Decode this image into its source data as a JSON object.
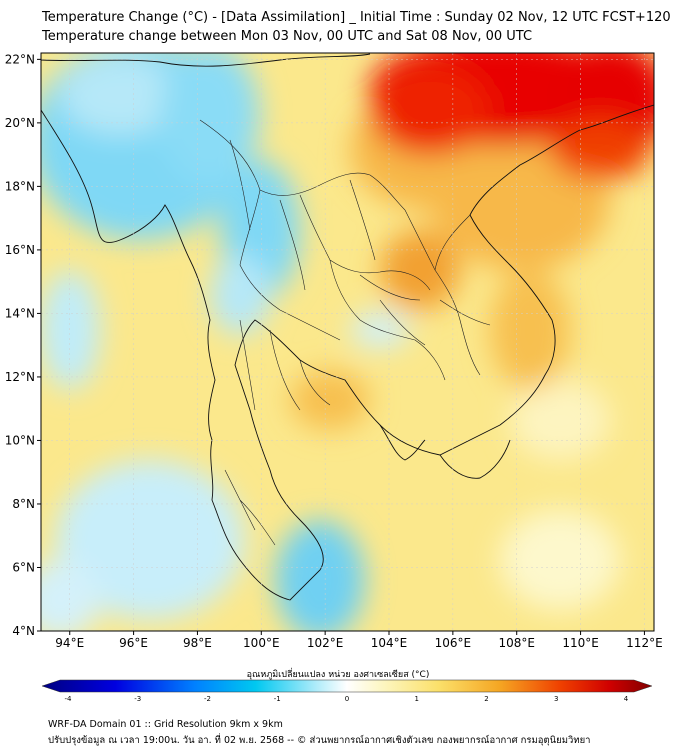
{
  "header": {
    "title_line1": "Temperature Change (°C) - [Data Assimilation] _ Initial Time : Sunday 02 Nov, 12 UTC FCST+120",
    "title_line2": "Temperature change between Mon 03 Nov, 00 UTC and Sat 08 Nov, 00 UTC"
  },
  "map": {
    "lat_labels": [
      "22°N",
      "20°N",
      "18°N",
      "16°N",
      "14°N",
      "12°N",
      "10°N",
      "8°N",
      "6°N",
      "4°N"
    ],
    "lon_labels": [
      "94°E",
      "96°E",
      "98°E",
      "100°E",
      "102°E",
      "104°E",
      "106°E",
      "108°E",
      "110°E",
      "112°E"
    ],
    "lat_range": [
      4,
      22.2
    ],
    "lon_range": [
      93.1,
      112.3
    ]
  },
  "colorbar": {
    "title": "อุณหภูมิเปลี่ยนแปลง หน่วย องศาเซลเซียส (°C)",
    "tick_labels": [
      "-4",
      "-3",
      "-2",
      "-1",
      "0",
      "1",
      "2",
      "3",
      "4"
    ],
    "range": [
      -4,
      4
    ]
  },
  "footer": {
    "line1": "WRF-DA Domain 01 :: Grid Resolution 9km x 9km",
    "line2": "ปรับปรุงข้อมูล ณ เวลา 19:00น. วัน อา. ที่ 02 พ.ย. 2568 -- © ส่วนพยากรณ์อากาศเชิงตัวเลข กองพยากรณ์อากาศ กรมอุตุนิยมวิทยา"
  },
  "colors": {
    "red": "#e60000",
    "orange": "#f5a623",
    "yellow": "#fbe77a",
    "pale": "#fdfbd8",
    "cyan": "#7fd8f5",
    "blue": "#00b4f0",
    "dark_blue": "#000080",
    "dark_red": "#800000"
  }
}
